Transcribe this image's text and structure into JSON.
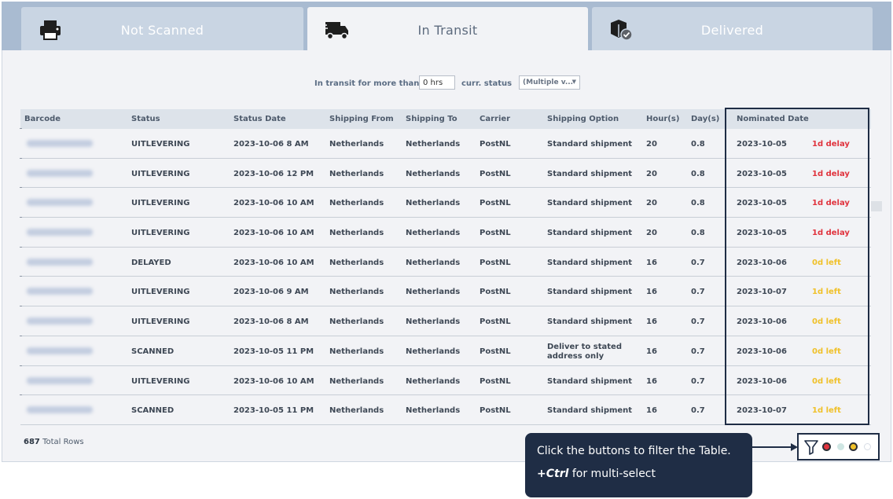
{
  "tabs": [
    {
      "label": "Not Scanned",
      "icon": "printer-icon",
      "active": false
    },
    {
      "label": "In Transit",
      "icon": "truck-icon",
      "active": true
    },
    {
      "label": "Delivered",
      "icon": "package-check-icon",
      "active": false
    }
  ],
  "filters": {
    "transit_label": "In transit for more than",
    "hours_value": "0 hrs",
    "status_label": "curr. status",
    "status_value": "(Multiple v..."
  },
  "table": {
    "columns": [
      "Barcode",
      "Status",
      "Status Date",
      "Shipping From",
      "Shipping To",
      "Carrier",
      "Shipping Option",
      "Hour(s)",
      "Day(s)",
      "Nominated Date"
    ],
    "rows": [
      {
        "status": "UITLEVERING",
        "status_date": "2023-10-06 8 AM",
        "from": "Netherlands",
        "to": "Netherlands",
        "carrier": "PostNL",
        "option": "Standard shipment",
        "hours": "20",
        "days": "0.8",
        "nominated": "2023-10-05",
        "delay": "1d delay",
        "delay_color": "red"
      },
      {
        "status": "UITLEVERING",
        "status_date": "2023-10-06 12 PM",
        "from": "Netherlands",
        "to": "Netherlands",
        "carrier": "PostNL",
        "option": "Standard shipment",
        "hours": "20",
        "days": "0.8",
        "nominated": "2023-10-05",
        "delay": "1d delay",
        "delay_color": "red"
      },
      {
        "status": "UITLEVERING",
        "status_date": "2023-10-06 10 AM",
        "from": "Netherlands",
        "to": "Netherlands",
        "carrier": "PostNL",
        "option": "Standard shipment",
        "hours": "20",
        "days": "0.8",
        "nominated": "2023-10-05",
        "delay": "1d delay",
        "delay_color": "red"
      },
      {
        "status": "UITLEVERING",
        "status_date": "2023-10-06 10 AM",
        "from": "Netherlands",
        "to": "Netherlands",
        "carrier": "PostNL",
        "option": "Standard shipment",
        "hours": "20",
        "days": "0.8",
        "nominated": "2023-10-05",
        "delay": "1d delay",
        "delay_color": "red"
      },
      {
        "status": "DELAYED",
        "status_date": "2023-10-06 10 AM",
        "from": "Netherlands",
        "to": "Netherlands",
        "carrier": "PostNL",
        "option": "Standard shipment",
        "hours": "16",
        "days": "0.7",
        "nominated": "2023-10-06",
        "delay": "0d left",
        "delay_color": "yellow"
      },
      {
        "status": "UITLEVERING",
        "status_date": "2023-10-06 9 AM",
        "from": "Netherlands",
        "to": "Netherlands",
        "carrier": "PostNL",
        "option": "Standard shipment",
        "hours": "16",
        "days": "0.7",
        "nominated": "2023-10-07",
        "delay": "1d left",
        "delay_color": "yellow"
      },
      {
        "status": "UITLEVERING",
        "status_date": "2023-10-06 8 AM",
        "from": "Netherlands",
        "to": "Netherlands",
        "carrier": "PostNL",
        "option": "Standard shipment",
        "hours": "16",
        "days": "0.7",
        "nominated": "2023-10-06",
        "delay": "0d left",
        "delay_color": "yellow"
      },
      {
        "status": "SCANNED",
        "status_date": "2023-10-05 11 PM",
        "from": "Netherlands",
        "to": "Netherlands",
        "carrier": "PostNL",
        "option": "Deliver to stated address only",
        "hours": "16",
        "days": "0.7",
        "nominated": "2023-10-06",
        "delay": "0d left",
        "delay_color": "yellow"
      },
      {
        "status": "UITLEVERING",
        "status_date": "2023-10-06 10 AM",
        "from": "Netherlands",
        "to": "Netherlands",
        "carrier": "PostNL",
        "option": "Standard shipment",
        "hours": "16",
        "days": "0.7",
        "nominated": "2023-10-06",
        "delay": "0d left",
        "delay_color": "yellow"
      },
      {
        "status": "SCANNED",
        "status_date": "2023-10-05 11 PM",
        "from": "Netherlands",
        "to": "Netherlands",
        "carrier": "PostNL",
        "option": "Standard shipment",
        "hours": "16",
        "days": "0.7",
        "nominated": "2023-10-07",
        "delay": "1d left",
        "delay_color": "yellow"
      }
    ]
  },
  "footer": {
    "total_count": "687",
    "total_label": "Total Rows"
  },
  "tooltip": {
    "line1": "Click the buttons to filter the Table.",
    "shortcut": "+Ctrl",
    "line2": "for multi-select"
  },
  "filter_buttons": [
    {
      "name": "filter-icon"
    },
    {
      "name": "red-filter-dot",
      "color": "#e0333d"
    },
    {
      "name": "teal-filter-dot",
      "color": "#cfe6e3"
    },
    {
      "name": "yellow-filter-dot",
      "color": "#f0c12a"
    },
    {
      "name": "empty-filter-dot",
      "color": "#ffffff"
    }
  ],
  "colors": {
    "navy": "#1f2d45",
    "tab_bar": "#a9bbd1",
    "delay_red": "#e0333d",
    "delay_yellow": "#f0c12a"
  }
}
